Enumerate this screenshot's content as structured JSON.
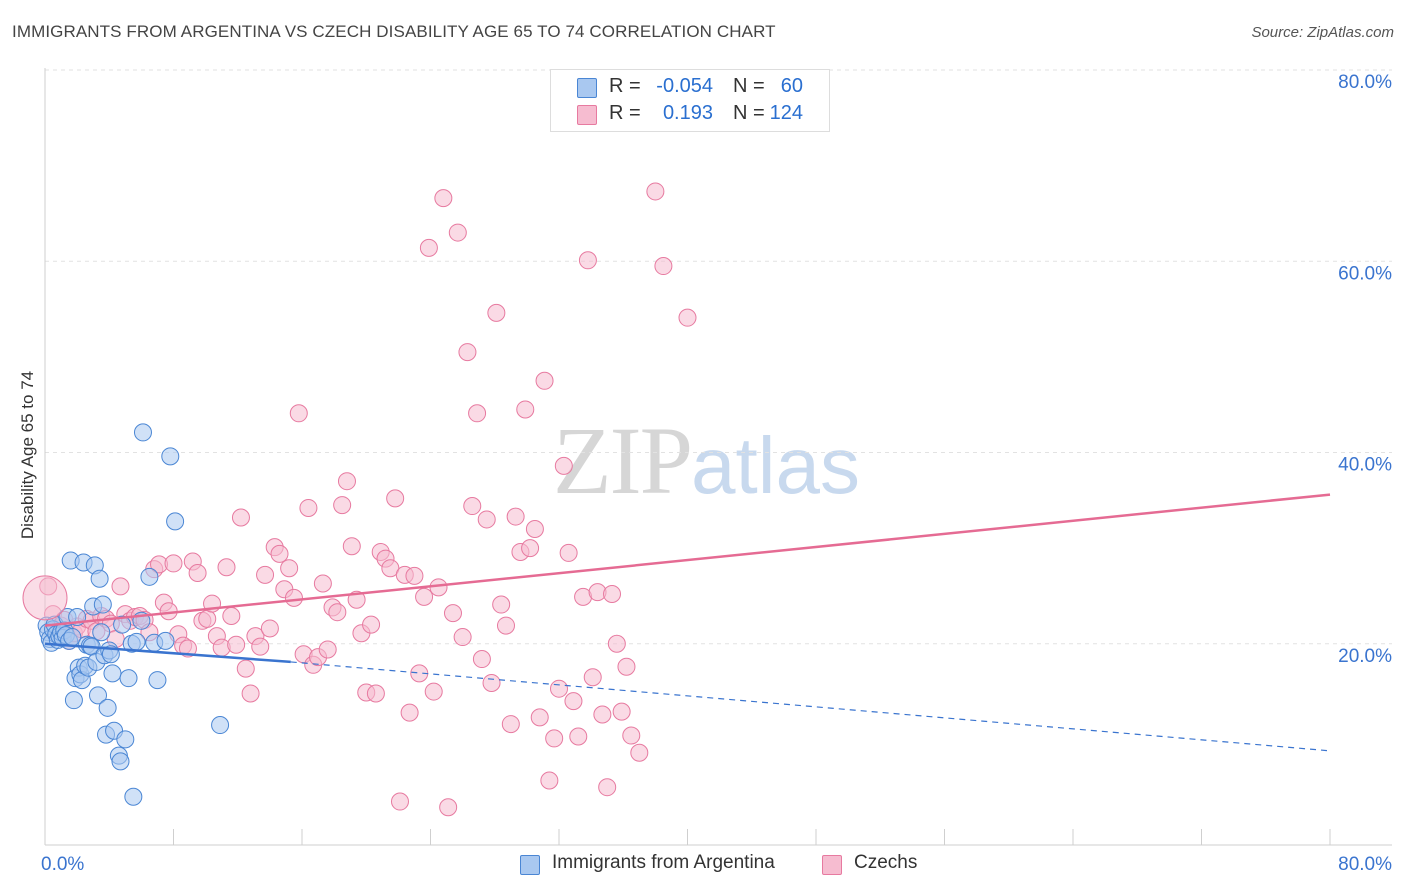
{
  "header": {
    "title": "IMMIGRANTS FROM ARGENTINA VS CZECH DISABILITY AGE 65 TO 74 CORRELATION CHART",
    "source": "Source: ZipAtlas.com"
  },
  "watermark": {
    "zip": "ZIP",
    "atlas": "atlas"
  },
  "legend_top": [
    {
      "r_label": "R =",
      "r_value": "-0.054",
      "n_label": "N =",
      "n_value": "60"
    },
    {
      "r_label": "R =",
      "r_value": "0.193",
      "n_label": "N =",
      "n_value": "124"
    }
  ],
  "legend_bottom": [
    {
      "label": "Immigrants from Argentina"
    },
    {
      "label": "Czechs"
    }
  ],
  "colors": {
    "blue_fill": "#a9c8f0",
    "blue_stroke": "#4a86d4",
    "blue_line": "#3a74cf",
    "pink_fill": "#f6bcd0",
    "pink_stroke": "#e77aa0",
    "pink_line": "#e56b93",
    "axis_text": "#3a74cf"
  },
  "chart_data": {
    "type": "scatter",
    "title": "IMMIGRANTS FROM ARGENTINA VS CZECH DISABILITY AGE 65 TO 74 CORRELATION CHART",
    "xlabel": "",
    "ylabel": "Disability Age 65 to 74",
    "xlim": [
      0,
      80
    ],
    "ylim": [
      0,
      80
    ],
    "x_tick_labels": [
      "0.0%",
      "80.0%"
    ],
    "y_tick_labels": [
      "20.0%",
      "40.0%",
      "60.0%",
      "80.0%"
    ],
    "y_ticks": [
      20,
      40,
      60,
      80
    ],
    "x_minor_ticks": [
      0,
      8,
      16,
      24,
      32,
      40,
      48,
      56,
      64,
      72,
      80
    ],
    "grid": true,
    "legend_position": "bottom",
    "series": [
      {
        "name": "Immigrants from Argentina",
        "R": -0.054,
        "N": 60,
        "trend": {
          "x0": 0,
          "y0": 20.0,
          "x1": 15.3,
          "y1": 18.1,
          "dash_to_x": 80,
          "dash_to_y": 8.8
        },
        "points": [
          [
            0.1,
            21.9
          ],
          [
            0.2,
            21.2
          ],
          [
            0.3,
            20.5
          ],
          [
            0.4,
            20.1
          ],
          [
            0.5,
            21.5
          ],
          [
            0.6,
            22.0
          ],
          [
            0.7,
            21.0
          ],
          [
            0.8,
            20.4
          ],
          [
            0.9,
            20.8
          ],
          [
            1.0,
            21.2
          ],
          [
            1.1,
            20.6
          ],
          [
            1.2,
            21.4
          ],
          [
            1.3,
            20.9
          ],
          [
            1.4,
            22.8
          ],
          [
            1.5,
            20.3
          ],
          [
            1.6,
            28.7
          ],
          [
            1.7,
            20.7
          ],
          [
            1.8,
            14.1
          ],
          [
            1.9,
            16.4
          ],
          [
            2.0,
            22.8
          ],
          [
            2.1,
            17.5
          ],
          [
            2.2,
            16.8
          ],
          [
            2.3,
            16.2
          ],
          [
            2.4,
            28.5
          ],
          [
            2.5,
            17.7
          ],
          [
            2.6,
            19.9
          ],
          [
            2.7,
            17.5
          ],
          [
            2.8,
            19.8
          ],
          [
            2.9,
            19.7
          ],
          [
            3.0,
            23.9
          ],
          [
            3.1,
            28.2
          ],
          [
            3.2,
            18.1
          ],
          [
            3.3,
            14.6
          ],
          [
            3.4,
            26.8
          ],
          [
            3.5,
            21.2
          ],
          [
            3.6,
            24.1
          ],
          [
            3.7,
            18.8
          ],
          [
            3.8,
            10.5
          ],
          [
            3.9,
            13.3
          ],
          [
            4.0,
            19.3
          ],
          [
            4.1,
            18.9
          ],
          [
            4.2,
            16.9
          ],
          [
            4.3,
            10.9
          ],
          [
            4.6,
            8.3
          ],
          [
            4.7,
            7.7
          ],
          [
            4.8,
            22.0
          ],
          [
            5.0,
            10.0
          ],
          [
            5.2,
            16.4
          ],
          [
            5.4,
            20.0
          ],
          [
            5.5,
            4.0
          ],
          [
            5.7,
            20.2
          ],
          [
            6.0,
            22.4
          ],
          [
            6.1,
            42.1
          ],
          [
            6.5,
            27.0
          ],
          [
            6.8,
            20.1
          ],
          [
            7.0,
            16.2
          ],
          [
            7.5,
            20.3
          ],
          [
            7.8,
            39.6
          ],
          [
            8.1,
            32.8
          ],
          [
            10.9,
            11.5
          ]
        ]
      },
      {
        "name": "Czechs",
        "R": 0.193,
        "N": 124,
        "trend": {
          "x0": 0,
          "y0": 21.9,
          "x1": 80,
          "y1": 35.6
        },
        "points": [
          [
            0.2,
            26.0
          ],
          [
            0.5,
            23.1
          ],
          [
            0.8,
            21.3
          ],
          [
            1.0,
            21.9
          ],
          [
            1.2,
            22.5
          ],
          [
            1.5,
            20.3
          ],
          [
            1.8,
            21.1
          ],
          [
            2.0,
            21.8
          ],
          [
            2.3,
            21.5
          ],
          [
            2.6,
            22.6
          ],
          [
            2.9,
            22.4
          ],
          [
            3.2,
            21.3
          ],
          [
            3.5,
            22.9
          ],
          [
            3.8,
            22.6
          ],
          [
            4.1,
            22.1
          ],
          [
            4.4,
            20.5
          ],
          [
            4.7,
            26.0
          ],
          [
            5.0,
            23.1
          ],
          [
            5.3,
            22.4
          ],
          [
            5.6,
            22.8
          ],
          [
            5.9,
            22.9
          ],
          [
            6.2,
            22.5
          ],
          [
            6.5,
            21.2
          ],
          [
            6.8,
            27.8
          ],
          [
            7.1,
            28.3
          ],
          [
            7.4,
            24.3
          ],
          [
            7.7,
            23.4
          ],
          [
            8.0,
            28.4
          ],
          [
            8.3,
            21.0
          ],
          [
            8.6,
            19.8
          ],
          [
            8.9,
            19.5
          ],
          [
            9.2,
            28.6
          ],
          [
            9.5,
            27.4
          ],
          [
            9.8,
            22.4
          ],
          [
            10.1,
            22.6
          ],
          [
            10.4,
            24.2
          ],
          [
            10.7,
            20.8
          ],
          [
            11.0,
            19.6
          ],
          [
            11.3,
            28.0
          ],
          [
            11.6,
            22.9
          ],
          [
            11.9,
            19.9
          ],
          [
            12.2,
            33.2
          ],
          [
            12.5,
            17.4
          ],
          [
            12.8,
            14.8
          ],
          [
            13.1,
            20.8
          ],
          [
            13.4,
            19.7
          ],
          [
            13.7,
            27.2
          ],
          [
            14.0,
            21.6
          ],
          [
            14.3,
            30.1
          ],
          [
            14.6,
            29.4
          ],
          [
            14.9,
            25.7
          ],
          [
            15.2,
            27.9
          ],
          [
            15.5,
            24.8
          ],
          [
            15.8,
            44.1
          ],
          [
            16.1,
            18.9
          ],
          [
            16.4,
            34.2
          ],
          [
            16.7,
            17.8
          ],
          [
            17.0,
            18.6
          ],
          [
            17.3,
            26.3
          ],
          [
            17.6,
            19.4
          ],
          [
            17.9,
            23.8
          ],
          [
            18.2,
            23.3
          ],
          [
            18.5,
            34.5
          ],
          [
            18.8,
            37.0
          ],
          [
            19.1,
            30.2
          ],
          [
            19.4,
            24.6
          ],
          [
            19.7,
            21.1
          ],
          [
            20.0,
            14.9
          ],
          [
            20.3,
            22.0
          ],
          [
            20.6,
            14.8
          ],
          [
            20.9,
            29.6
          ],
          [
            21.2,
            28.9
          ],
          [
            21.5,
            27.9
          ],
          [
            21.8,
            35.2
          ],
          [
            22.1,
            3.5
          ],
          [
            22.4,
            27.2
          ],
          [
            22.7,
            12.8
          ],
          [
            23.0,
            27.1
          ],
          [
            23.3,
            16.9
          ],
          [
            23.6,
            24.9
          ],
          [
            23.9,
            61.4
          ],
          [
            24.2,
            15.0
          ],
          [
            24.5,
            25.9
          ],
          [
            24.8,
            66.6
          ],
          [
            25.1,
            2.9
          ],
          [
            25.4,
            23.2
          ],
          [
            25.7,
            63.0
          ],
          [
            26.0,
            20.7
          ],
          [
            26.3,
            50.5
          ],
          [
            26.6,
            34.4
          ],
          [
            26.9,
            44.1
          ],
          [
            27.2,
            18.4
          ],
          [
            27.5,
            33.0
          ],
          [
            27.8,
            15.9
          ],
          [
            28.1,
            54.6
          ],
          [
            28.4,
            24.1
          ],
          [
            28.7,
            21.9
          ],
          [
            29.0,
            11.6
          ],
          [
            29.3,
            33.3
          ],
          [
            29.6,
            29.6
          ],
          [
            29.9,
            44.5
          ],
          [
            30.2,
            30.0
          ],
          [
            30.5,
            32.0
          ],
          [
            30.8,
            12.3
          ],
          [
            31.1,
            47.5
          ],
          [
            31.4,
            5.7
          ],
          [
            31.7,
            10.1
          ],
          [
            32.0,
            15.3
          ],
          [
            32.3,
            38.6
          ],
          [
            32.6,
            29.5
          ],
          [
            32.9,
            14.0
          ],
          [
            33.2,
            10.3
          ],
          [
            33.5,
            24.9
          ],
          [
            33.8,
            60.1
          ],
          [
            34.1,
            16.5
          ],
          [
            34.4,
            25.4
          ],
          [
            34.7,
            12.6
          ],
          [
            35.0,
            5.0
          ],
          [
            35.3,
            25.2
          ],
          [
            35.6,
            20.0
          ],
          [
            35.9,
            12.9
          ],
          [
            36.2,
            17.6
          ],
          [
            36.5,
            10.4
          ],
          [
            37.0,
            8.6
          ],
          [
            38.0,
            67.3
          ],
          [
            38.5,
            59.5
          ],
          [
            40.0,
            54.1
          ]
        ]
      }
    ]
  }
}
